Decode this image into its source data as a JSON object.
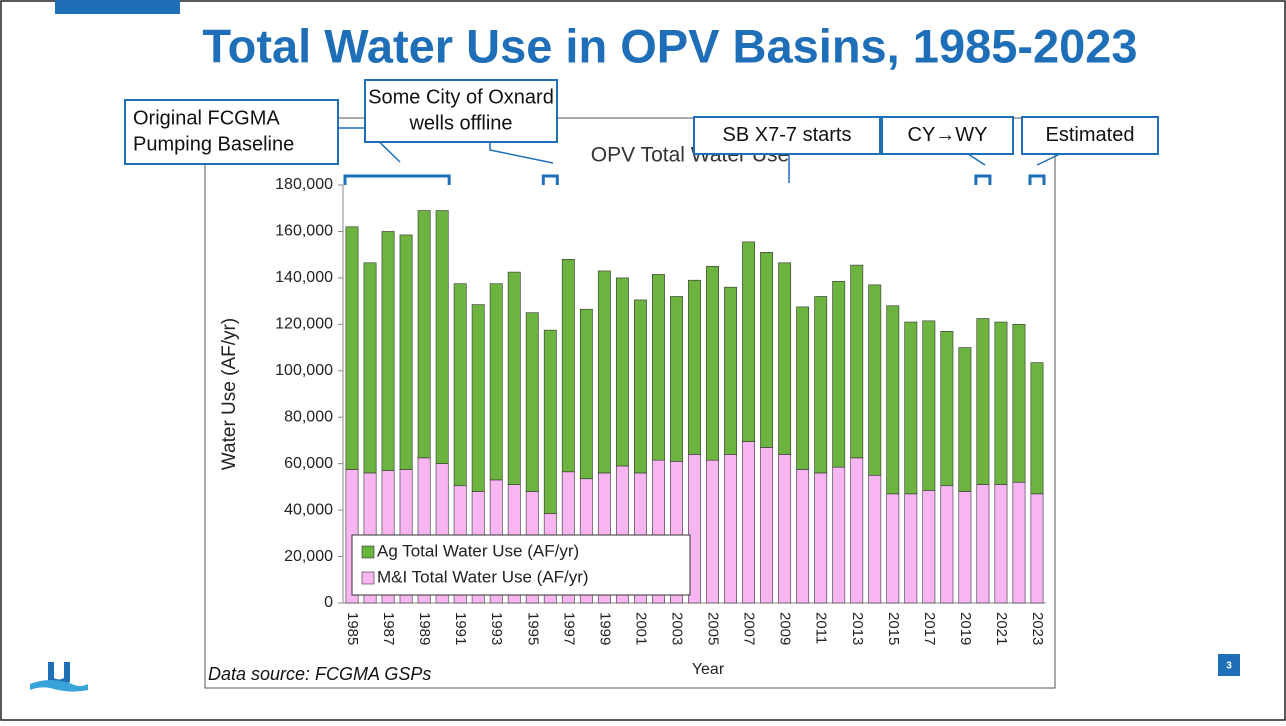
{
  "slide": {
    "title": "Total Water Use in OPV Basins, 1985-2023",
    "source": "Data source: FCGMA GSPs",
    "page_number": "3"
  },
  "chart_data": {
    "type": "stacked_bar",
    "title": "OPV Total Water Use",
    "x_label": "Year",
    "y_label": "Water Use (AF/yr)",
    "categories": [
      "1985",
      null,
      "1987",
      null,
      "1989",
      null,
      "1991",
      null,
      "1993",
      null,
      "1995",
      null,
      "1997",
      null,
      "1999",
      null,
      "2001",
      null,
      "2003",
      null,
      "2005",
      null,
      "2007",
      null,
      "2009",
      null,
      "2011",
      null,
      "2013",
      null,
      "2015",
      null,
      "2017",
      null,
      "2019",
      null,
      "2021",
      null,
      "2023"
    ],
    "series": [
      {
        "name": "Ag Total Water Use (AF/yr)",
        "color": "#6db33f",
        "values": [
          104500,
          90500,
          103000,
          101000,
          106500,
          109000,
          87000,
          80500,
          84500,
          91500,
          77000,
          79000,
          91500,
          73000,
          87000,
          81000,
          74500,
          80000,
          71000,
          75000,
          83500,
          72000,
          86000,
          84000,
          82500,
          70000,
          76000,
          80000,
          83000,
          82000,
          81000,
          74000,
          73000,
          66500,
          62000,
          71500,
          70000,
          68000,
          56500
        ]
      },
      {
        "name": "M&I Total Water Use (AF/yr)",
        "color": "#f7b6f2",
        "values": [
          57500,
          56000,
          57000,
          57500,
          62500,
          60000,
          50500,
          48000,
          53000,
          51000,
          48000,
          38500,
          56500,
          53500,
          56000,
          59000,
          56000,
          61500,
          61000,
          64000,
          61500,
          64000,
          69500,
          67000,
          64000,
          57500,
          56000,
          58500,
          62500,
          55000,
          47000,
          47000,
          48500,
          50500,
          48000,
          51000,
          51000,
          52000,
          47000
        ]
      }
    ],
    "ylim": [
      0,
      180000
    ],
    "yticks": [
      0,
      {
        "value": 20000,
        "label": "20,000"
      },
      {
        "value": 40000,
        "label": "40,000"
      },
      {
        "value": 60000,
        "label": "60,000"
      },
      {
        "value": 80000,
        "label": "80,000"
      },
      {
        "value": 100000,
        "label": "100,000"
      },
      {
        "value": 120000,
        "label": "120,000"
      },
      {
        "value": 140000,
        "label": "140,000"
      },
      {
        "value": 160000,
        "label": "160,000"
      },
      {
        "value": 180000,
        "label": "180,000"
      }
    ],
    "grid": false,
    "legend": "lower left",
    "annotations": [
      {
        "lines": [
          "Original FCGMA",
          "Pumping Baseline"
        ]
      },
      {
        "lines": [
          "Some City of Oxnard",
          "wells offline"
        ]
      },
      {
        "lines": [
          "SB X7-7 starts"
        ]
      },
      {
        "lines": [
          "CY→WY"
        ]
      },
      {
        "lines": [
          "Estimated"
        ]
      }
    ]
  }
}
